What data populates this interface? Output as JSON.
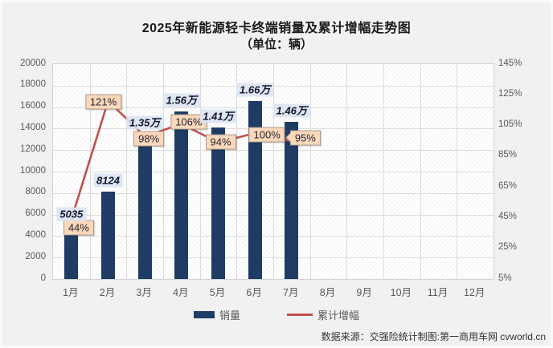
{
  "chart_data": {
    "type": "combo",
    "title": "2025年新能源轻卡终端销量及累计增幅走势图",
    "subtitle": "（单位：辆）",
    "categories": [
      "1月",
      "2月",
      "3月",
      "4月",
      "5月",
      "6月",
      "7月",
      "8月",
      "9月",
      "10月",
      "11月",
      "12月"
    ],
    "series": [
      {
        "name": "销量",
        "type": "bar",
        "color": "#1f3c64",
        "values": [
          5035,
          8124,
          13500,
          15600,
          14100,
          16600,
          14600
        ],
        "value_labels": [
          "5035",
          "8124",
          "1.35万",
          "1.56万",
          "1.41万",
          "1.66万",
          "1.46万"
        ]
      },
      {
        "name": "累计增幅",
        "type": "line",
        "color": "#c0504d",
        "values": [
          44,
          121,
          98,
          106,
          94,
          100,
          95
        ],
        "value_labels": [
          "44%",
          "121%",
          "98%",
          "106%",
          "94%",
          "100%",
          "95%"
        ]
      }
    ],
    "y_axis_left": {
      "min": 0,
      "max": 20000,
      "step": 2000,
      "ticks": [
        "0",
        "2000",
        "4000",
        "6000",
        "8000",
        "10000",
        "12000",
        "14000",
        "16000",
        "18000",
        "20000"
      ]
    },
    "y_axis_right": {
      "min": 5,
      "max": 145,
      "step": 20,
      "ticks": [
        "5%",
        "25%",
        "45%",
        "65%",
        "85%",
        "105%",
        "125%",
        "145%"
      ]
    },
    "grid": true,
    "legend_position": "bottom"
  },
  "footer": {
    "source_text": "数据来源：交强险统计制图:第一商用车网 cvworld.cn"
  }
}
